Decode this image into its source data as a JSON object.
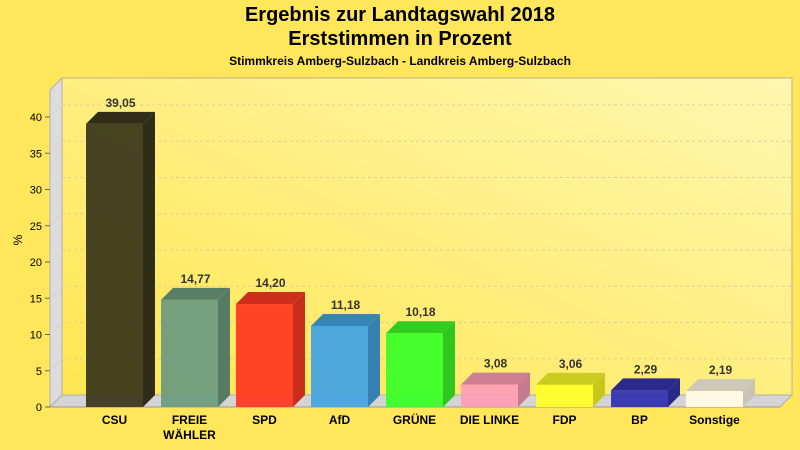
{
  "chart_data": {
    "type": "bar",
    "title": "Ergebnis zur Landtagswahl 2018",
    "subtitle": "Erststimmen in Prozent",
    "subsubtitle": "Stimmkreis Amberg-Sulzbach - Landkreis Amberg-Sulzbach",
    "xlabel": "",
    "ylabel": "%",
    "ylim": [
      0,
      44
    ],
    "yticks": [
      0,
      5,
      10,
      15,
      20,
      25,
      30,
      35,
      40
    ],
    "grid": true,
    "legend": "none",
    "three_d": true,
    "categories": [
      "CSU",
      "FREIE WÄHLER",
      "SPD",
      "AfD",
      "GRÜNE",
      "DIE LINKE",
      "FDP",
      "BP",
      "Sonstige"
    ],
    "category_lines": [
      [
        "CSU"
      ],
      [
        "FREIE",
        "WÄHLER"
      ],
      [
        "SPD"
      ],
      [
        "AfD"
      ],
      [
        "GRÜNE"
      ],
      [
        "DIE LINKE"
      ],
      [
        "FDP"
      ],
      [
        "BP"
      ],
      [
        "Sonstige"
      ]
    ],
    "values": [
      39.05,
      14.77,
      14.2,
      11.18,
      10.18,
      3.08,
      3.06,
      2.29,
      2.19
    ],
    "data_labels": [
      "39,05",
      "14,77",
      "14,20",
      "11,18",
      "10,18",
      "3,08",
      "3,06",
      "2,29",
      "2,19"
    ],
    "colors": [
      "#3d3a1e",
      "#6f9c7e",
      "#ff3b22",
      "#46a5e4",
      "#3cff28",
      "#ff9eb6",
      "#ffff28",
      "#3434b0",
      "#fffbe6"
    ]
  }
}
